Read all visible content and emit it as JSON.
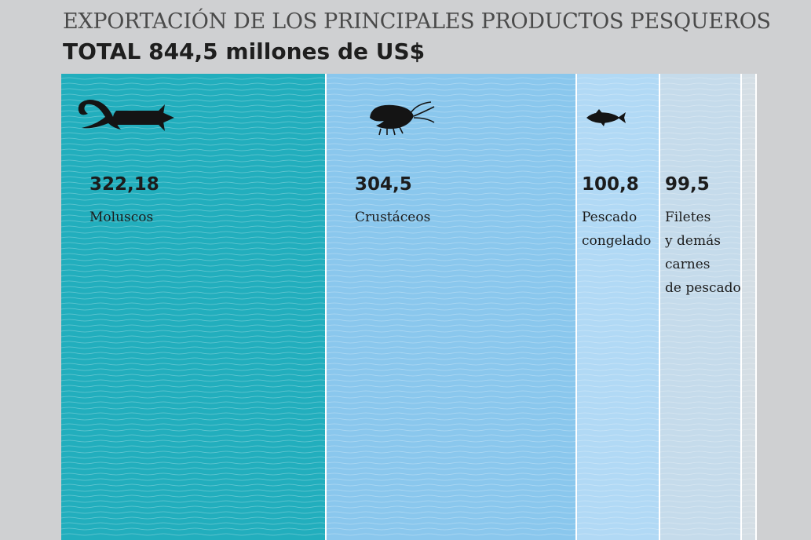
{
  "header": {
    "title": "EXPORTACIÓN DE LOS PRINCIPALES PRODUCTOS PESQUEROS",
    "subtitle": "TOTAL 844,5 millones de US$"
  },
  "chart_data": {
    "type": "bar",
    "title": "EXPORTACIÓN DE LOS PRINCIPALES PRODUCTOS PESQUEROS",
    "subtitle": "TOTAL 844,5 millones de US$",
    "total": 844.5,
    "categories": [
      [
        "Moluscos"
      ],
      [
        "Crustáceos"
      ],
      [
        "Pescado",
        "congelado"
      ],
      [
        "Filetes",
        "y demás",
        "carnes",
        "de pescado"
      ],
      [
        ""
      ]
    ],
    "values": [
      322.18,
      304.5,
      100.8,
      99.5,
      17.52
    ],
    "value_labels": [
      "322,18",
      "304,5",
      "100,8",
      "99,5",
      ""
    ],
    "colors": [
      "#22aebd",
      "#8ac7ed",
      "#b1d9f5",
      "#c5dbeb",
      "#d4dee5"
    ],
    "icons": [
      "squid-icon",
      "shrimp-icon",
      "fish-icon",
      "",
      ""
    ]
  }
}
